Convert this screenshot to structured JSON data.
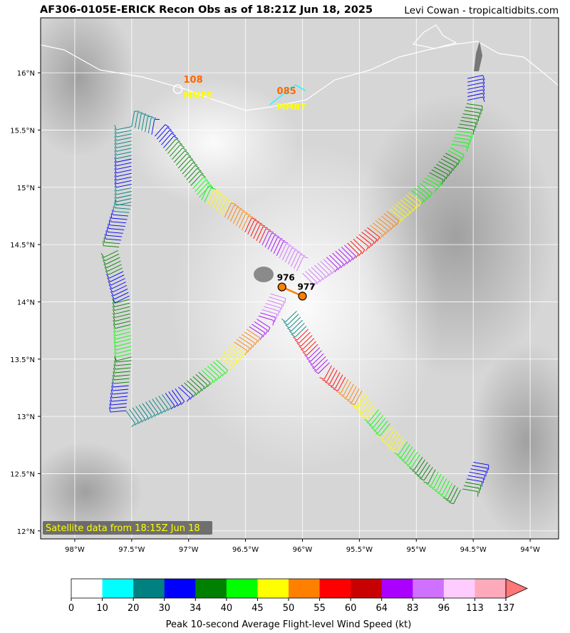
{
  "header": {
    "title": "AF306-0105E-ERICK Recon Obs as of 18:21Z Jun 18, 2025",
    "credit": "Levi Cowan - tropicaltidbits.com"
  },
  "map": {
    "lon_range": [
      -98.3,
      -93.75
    ],
    "lat_range": [
      11.93,
      16.48
    ],
    "lon_ticks": [
      -98,
      -97.5,
      -97,
      -96.5,
      -96,
      -95.5,
      -95,
      -94.5,
      -94
    ],
    "lon_tick_labels": [
      "98°W",
      "97.5°W",
      "97°W",
      "96.5°W",
      "96°W",
      "95.5°W",
      "95°W",
      "94.5°W",
      "94°W"
    ],
    "lat_ticks": [
      12,
      12.5,
      13,
      13.5,
      14,
      14.5,
      15,
      15.5,
      16
    ],
    "lat_tick_labels": [
      "12°N",
      "12.5°N",
      "13°N",
      "13.5°N",
      "14°N",
      "14.5°N",
      "15°N",
      "15.5°N",
      "16°N"
    ],
    "grid": true,
    "satellite_label": "Satellite data from 18:15Z Jun 18"
  },
  "stations": [
    {
      "id": "MMPS",
      "value": "108",
      "lon": -97.07,
      "lat": 15.87
    },
    {
      "id": "MMBT",
      "value": "085",
      "lon": -96.25,
      "lat": 15.77
    }
  ],
  "pressure_obs": [
    {
      "value": "976",
      "lon": -96.18,
      "lat": 14.13
    },
    {
      "value": "977",
      "lon": -96.0,
      "lat": 14.05
    }
  ],
  "flight_track": {
    "legs": [
      {
        "name": "upper-left",
        "points": [
          [
            -96.05,
            14.27
          ],
          [
            -96.9,
            14.9
          ],
          [
            -97.15,
            15.25
          ],
          [
            -97.3,
            15.45
          ],
          [
            -97.5,
            15.53
          ]
        ]
      },
      {
        "name": "west-side",
        "points": [
          [
            -97.5,
            15.53
          ],
          [
            -97.5,
            14.85
          ],
          [
            -97.62,
            14.45
          ],
          [
            -97.52,
            14.05
          ],
          [
            -97.5,
            13.5
          ],
          [
            -97.55,
            13.05
          ]
        ]
      },
      {
        "name": "lower-left",
        "points": [
          [
            -97.55,
            13.05
          ],
          [
            -97.1,
            13.25
          ],
          [
            -96.75,
            13.5
          ],
          [
            -96.4,
            13.85
          ],
          [
            -96.28,
            14.07
          ]
        ]
      },
      {
        "name": "lower-right",
        "points": [
          [
            -96.05,
            13.92
          ],
          [
            -95.75,
            13.45
          ],
          [
            -95.45,
            13.2
          ],
          [
            -95.2,
            12.9
          ],
          [
            -94.85,
            12.55
          ],
          [
            -94.6,
            12.35
          ],
          [
            -94.5,
            12.6
          ]
        ]
      },
      {
        "name": "upper-right",
        "points": [
          [
            -96.0,
            14.25
          ],
          [
            -95.55,
            14.55
          ],
          [
            -95.25,
            14.8
          ],
          [
            -94.95,
            15.05
          ],
          [
            -94.7,
            15.35
          ],
          [
            -94.55,
            15.75
          ],
          [
            -94.55,
            15.95
          ]
        ]
      }
    ],
    "speeds": [
      {
        "leg": "upper-left",
        "values": [
          83,
          64,
          55,
          50,
          45,
          40,
          34,
          34,
          30,
          20
        ]
      },
      {
        "leg": "west-side",
        "values": [
          20,
          30,
          20,
          30,
          34,
          30,
          34,
          40,
          34,
          30
        ]
      },
      {
        "leg": "lower-left",
        "values": [
          20,
          20,
          30,
          34,
          40,
          45,
          50,
          64,
          83
        ]
      },
      {
        "leg": "lower-right",
        "values": [
          20,
          55,
          64,
          55,
          50,
          45,
          40,
          45,
          40,
          34,
          40,
          34,
          30
        ]
      },
      {
        "leg": "upper-right",
        "values": [
          83,
          64,
          55,
          50,
          45,
          40,
          34,
          40,
          34,
          30
        ]
      }
    ]
  },
  "colorbar": {
    "title": "Peak 10-second Average Flight-level Wind Speed (kt)",
    "ticks": [
      "0",
      "10",
      "20",
      "30",
      "34",
      "40",
      "45",
      "50",
      "55",
      "60",
      "64",
      "83",
      "96",
      "113",
      "137"
    ],
    "colors": [
      "#ffffff",
      "#00ffff",
      "#008080",
      "#0000ff",
      "#008000",
      "#00ff00",
      "#ffff00",
      "#ff8000",
      "#ff0000",
      "#c80000",
      "#aa00ff",
      "#d070ff",
      "#ffccff",
      "#ffaabb",
      "#ff7777"
    ]
  }
}
